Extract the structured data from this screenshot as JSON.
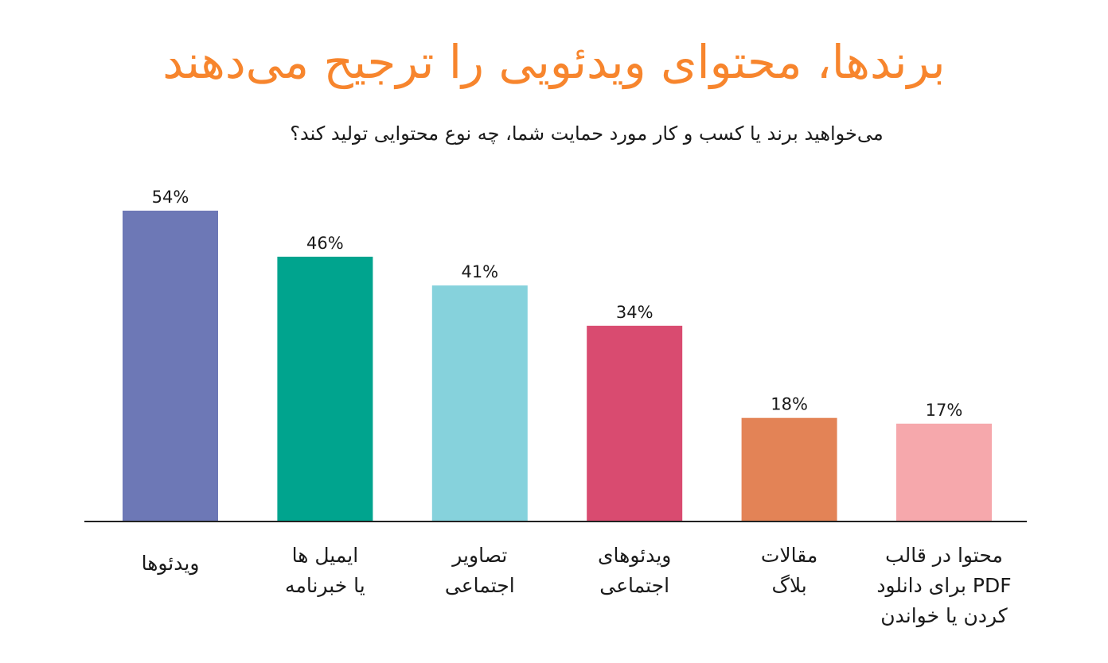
{
  "chart_data": {
    "type": "bar",
    "title": "برندها، محتوای ویدئویی را ترجیح می‌دهند",
    "subtitle": "می‌خواهید برند یا کسب و کار مورد حمایت شما، چه نوع محتوایی تولید کند؟",
    "categories": [
      "ویدئوها",
      "ایمیل ها\nیا خبرنامه",
      "تصاویر\nاجتماعی",
      "ویدئوهای\nاجتماعی",
      "مقالات\nبلاگ",
      "محتوا در قالب\nPDF برای دانلود\nکردن یا خواندن"
    ],
    "values": [
      54,
      46,
      41,
      34,
      18,
      17
    ],
    "value_labels": [
      "54%",
      "46%",
      "41%",
      "34%",
      "18%",
      "17%"
    ],
    "unit": "%",
    "colors": [
      "#6d78b6",
      "#00a48e",
      "#86d2dc",
      "#d94b70",
      "#e38356",
      "#f6a8ac"
    ],
    "ylim": [
      0,
      54
    ],
    "grid": false,
    "legend": "none"
  }
}
